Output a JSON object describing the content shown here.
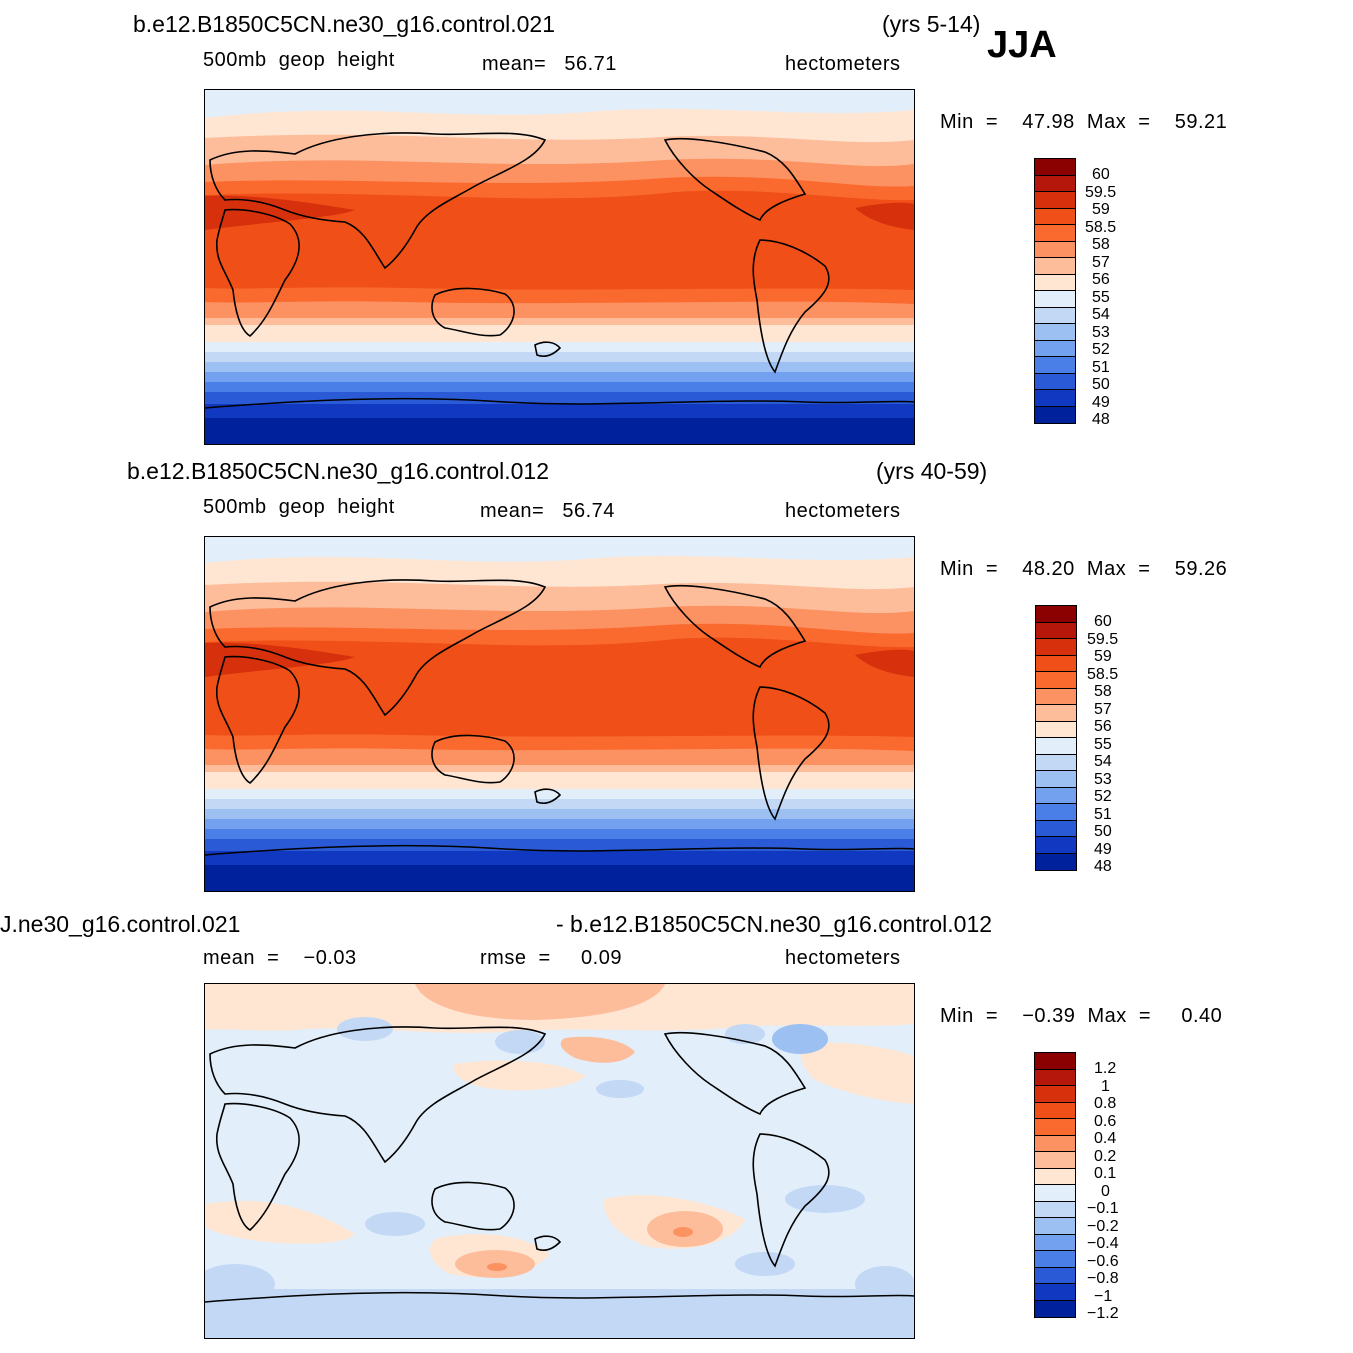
{
  "season": "JJA",
  "panels": [
    {
      "case_left": "b.e12.B1850C5CN.ne30_g16.control.021",
      "case_right": "(yrs 5-14)",
      "variable": "500mb  geop  height",
      "stat": "mean=   56.71",
      "units": "hectometers",
      "minmax": "Min  =    47.98  Max  =    59.21",
      "levels": [
        "60",
        "59.5",
        "59",
        "58.5",
        "58",
        "57",
        "56",
        "55",
        "54",
        "53",
        "52",
        "51",
        "50",
        "49",
        "48"
      ],
      "fill_colors": [
        "#8b0000",
        "#b5170a",
        "#d7300d",
        "#f04f17",
        "#fa6a2e",
        "#fc9161",
        "#fdbd9a",
        "#fee6d3",
        "#e2eefa",
        "#c2d8f5",
        "#9cc0f2",
        "#73a1ef",
        "#4a7fe8",
        "#2a5ad6",
        "#1138c0",
        "#00219c"
      ]
    },
    {
      "case_left": "b.e12.B1850C5CN.ne30_g16.control.012",
      "case_right": "(yrs 40-59)",
      "variable": "500mb  geop  height",
      "stat": "mean=   56.74",
      "units": "hectometers",
      "minmax": "Min  =    48.20  Max  =    59.26",
      "levels": [
        "60",
        "59.5",
        "59",
        "58.5",
        "58",
        "57",
        "56",
        "55",
        "54",
        "53",
        "52",
        "51",
        "50",
        "49",
        "48"
      ],
      "fill_colors": [
        "#8b0000",
        "#b5170a",
        "#d7300d",
        "#f04f17",
        "#fa6a2e",
        "#fc9161",
        "#fdbd9a",
        "#fee6d3",
        "#e2eefa",
        "#c2d8f5",
        "#9cc0f2",
        "#73a1ef",
        "#4a7fe8",
        "#2a5ad6",
        "#1138c0",
        "#00219c"
      ]
    },
    {
      "case_left": "J.ne30_g16.control.021",
      "case_right": "- b.e12.B1850C5CN.ne30_g16.control.012",
      "variable": "mean  =    −0.03",
      "stat": "rmse  =     0.09",
      "units": "hectometers",
      "minmax": "Min  =    −0.39  Max  =     0.40",
      "levels": [
        "1.2",
        "1",
        "0.8",
        "0.6",
        "0.4",
        "0.2",
        "0.1",
        "0",
        "−0.1",
        "−0.2",
        "−0.4",
        "−0.6",
        "−0.8",
        "−1",
        "−1.2"
      ],
      "fill_colors": [
        "#8b0000",
        "#b5170a",
        "#d7300d",
        "#f04f17",
        "#fa6a2e",
        "#fc9161",
        "#fdbd9a",
        "#fee6d3",
        "#e2eefa",
        "#c2d8f5",
        "#9cc0f2",
        "#73a1ef",
        "#4a7fe8",
        "#2a5ad6",
        "#1138c0",
        "#00219c"
      ]
    }
  ]
}
